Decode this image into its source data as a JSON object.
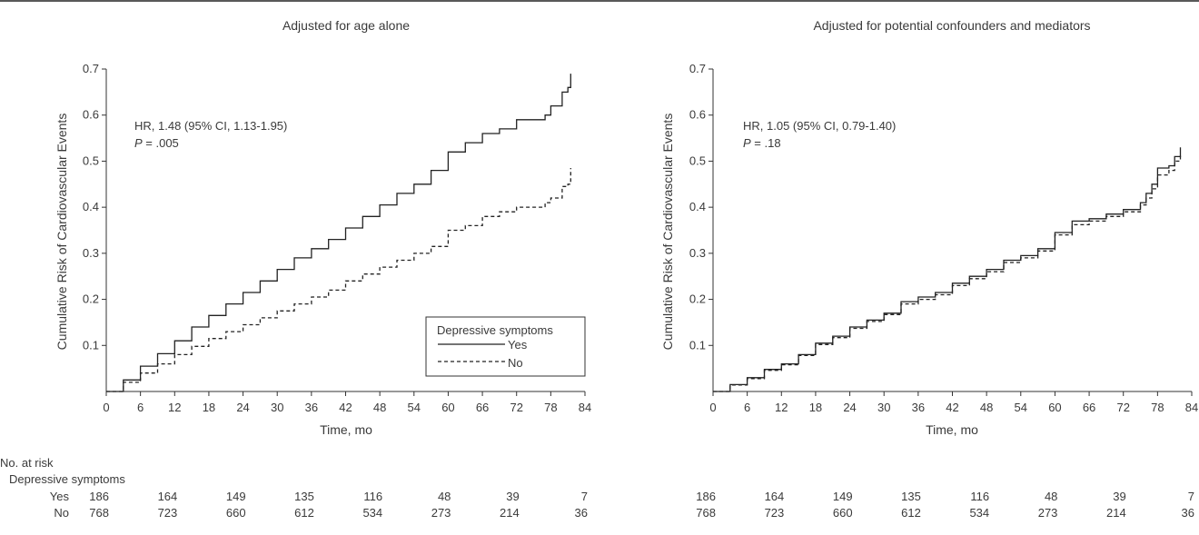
{
  "chart_data": [
    {
      "type": "line",
      "title": "Adjusted for age alone",
      "xlabel": "Time, mo",
      "ylabel": "Cumulative Risk of Cardiovascular Events",
      "xlim": [
        0,
        84
      ],
      "ylim": [
        0,
        0.7
      ],
      "xticks": [
        "0",
        "6",
        "12",
        "18",
        "24",
        "30",
        "36",
        "42",
        "48",
        "54",
        "60",
        "66",
        "72",
        "78",
        "84"
      ],
      "yticks": [
        "0.1",
        "0.2",
        "0.3",
        "0.4",
        "0.5",
        "0.6",
        "0.7"
      ],
      "annotation": {
        "hr": "HR, 1.48 (95% CI, 1.13-1.95)",
        "p_label": "P",
        "p_value": " = .005"
      },
      "legend": {
        "title": "Depressive symptoms",
        "entries": [
          "Yes",
          "No"
        ],
        "position": "lower-right"
      },
      "series": [
        {
          "name": "Yes",
          "style": "solid",
          "x": [
            0,
            3,
            6,
            9,
            12,
            15,
            18,
            21,
            24,
            27,
            30,
            33,
            36,
            39,
            42,
            45,
            48,
            51,
            54,
            57,
            60,
            63,
            66,
            69,
            72,
            75,
            77,
            78,
            80,
            81,
            81.5
          ],
          "y": [
            0,
            0.025,
            0.055,
            0.082,
            0.11,
            0.14,
            0.165,
            0.19,
            0.215,
            0.24,
            0.265,
            0.29,
            0.31,
            0.33,
            0.355,
            0.38,
            0.405,
            0.43,
            0.45,
            0.48,
            0.52,
            0.54,
            0.56,
            0.57,
            0.59,
            0.59,
            0.6,
            0.62,
            0.65,
            0.66,
            0.69
          ]
        },
        {
          "name": "No",
          "style": "dashed",
          "x": [
            0,
            3,
            6,
            9,
            12,
            15,
            18,
            21,
            24,
            27,
            30,
            33,
            36,
            39,
            42,
            45,
            48,
            51,
            54,
            57,
            60,
            63,
            66,
            69,
            72,
            75,
            77,
            78,
            80,
            81,
            81.5
          ],
          "y": [
            0,
            0.02,
            0.04,
            0.06,
            0.08,
            0.098,
            0.115,
            0.13,
            0.145,
            0.16,
            0.175,
            0.19,
            0.205,
            0.22,
            0.24,
            0.255,
            0.27,
            0.285,
            0.3,
            0.315,
            0.35,
            0.36,
            0.38,
            0.39,
            0.4,
            0.4,
            0.41,
            0.42,
            0.445,
            0.45,
            0.485
          ]
        }
      ]
    },
    {
      "type": "line",
      "title": "Adjusted for potential confounders and mediators",
      "xlabel": "Time, mo",
      "ylabel": "Cumulative Risk of Cardiovascular Events",
      "xlim": [
        0,
        84
      ],
      "ylim": [
        0,
        0.7
      ],
      "xticks": [
        "0",
        "6",
        "12",
        "18",
        "24",
        "30",
        "36",
        "42",
        "48",
        "54",
        "60",
        "66",
        "72",
        "78",
        "84"
      ],
      "yticks": [
        "0.1",
        "0.2",
        "0.3",
        "0.4",
        "0.5",
        "0.6",
        "0.7"
      ],
      "annotation": {
        "hr": "HR, 1.05 (95% CI, 0.79-1.40)",
        "p_label": "P",
        "p_value": " = .18"
      },
      "series": [
        {
          "name": "Yes",
          "style": "solid",
          "x": [
            0,
            3,
            6,
            9,
            12,
            15,
            18,
            21,
            24,
            27,
            30,
            33,
            36,
            39,
            42,
            45,
            48,
            51,
            54,
            57,
            60,
            63,
            66,
            69,
            72,
            75,
            76,
            77,
            78,
            80,
            81,
            82
          ],
          "y": [
            0,
            0.015,
            0.03,
            0.048,
            0.06,
            0.08,
            0.105,
            0.12,
            0.14,
            0.155,
            0.17,
            0.195,
            0.205,
            0.215,
            0.235,
            0.25,
            0.265,
            0.285,
            0.295,
            0.31,
            0.345,
            0.37,
            0.375,
            0.385,
            0.395,
            0.41,
            0.43,
            0.45,
            0.485,
            0.49,
            0.51,
            0.53
          ]
        },
        {
          "name": "No",
          "style": "dashed",
          "x": [
            0,
            3,
            6,
            9,
            12,
            15,
            18,
            21,
            24,
            27,
            30,
            33,
            36,
            39,
            42,
            45,
            48,
            51,
            54,
            57,
            60,
            63,
            66,
            69,
            72,
            75,
            76,
            77,
            78,
            80,
            81,
            82
          ],
          "y": [
            0,
            0.014,
            0.028,
            0.046,
            0.058,
            0.078,
            0.102,
            0.117,
            0.137,
            0.152,
            0.167,
            0.19,
            0.2,
            0.21,
            0.23,
            0.245,
            0.26,
            0.28,
            0.29,
            0.305,
            0.34,
            0.362,
            0.37,
            0.38,
            0.39,
            0.405,
            0.42,
            0.44,
            0.47,
            0.48,
            0.5,
            0.515
          ]
        }
      ]
    }
  ],
  "at_risk": {
    "header": "No. at risk",
    "subheader": "Depressive symptoms",
    "times": [
      0,
      12,
      24,
      36,
      48,
      60,
      72,
      84
    ],
    "rows": [
      {
        "label": "Yes",
        "values": [
          "186",
          "164",
          "149",
          "135",
          "116",
          "48",
          "39",
          "7"
        ]
      },
      {
        "label": "No",
        "values": [
          "768",
          "723",
          "660",
          "612",
          "534",
          "273",
          "214",
          "36"
        ]
      }
    ]
  }
}
